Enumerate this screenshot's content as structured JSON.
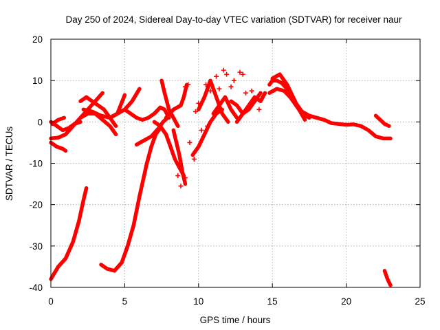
{
  "chart_data": {
    "type": "scatter",
    "title": "Day 250 of 2024, Sidereal Day-to-day VTEC variation (SDTVAR) for receiver naur",
    "xlabel": "GPS time / hours",
    "ylabel": "SDTVAR / TECUs",
    "xlim": [
      0,
      25
    ],
    "ylim": [
      -40,
      20
    ],
    "xticks": [
      0,
      5,
      10,
      15,
      20,
      25
    ],
    "yticks": [
      -40,
      -30,
      -20,
      -10,
      0,
      10,
      20
    ],
    "grid": true,
    "marker": "+",
    "color": "#ff0000",
    "series": [
      {
        "name": "trace-1",
        "x": [
          0,
          0.5,
          1.0,
          1.5,
          1.9,
          2.2,
          2.4
        ],
        "y": [
          -38,
          -35,
          -33,
          -29,
          -24,
          -19,
          -16
        ]
      },
      {
        "name": "trace-2",
        "x": [
          3.4,
          3.8,
          4.3,
          4.8,
          5.2,
          5.6,
          6.0,
          6.5,
          6.8,
          7.1,
          7.4
        ],
        "y": [
          -34.5,
          -35.5,
          -36,
          -34,
          -30,
          -25,
          -18,
          -10,
          -6,
          -3,
          -1.5
        ]
      },
      {
        "name": "trace-3",
        "x": [
          0,
          0.4,
          0.8,
          1.0
        ],
        "y": [
          -5,
          -6,
          -6.5,
          -7
        ]
      },
      {
        "name": "trace-4",
        "x": [
          0,
          0.5,
          1.0,
          1.5,
          2.0,
          2.5,
          3.0,
          3.5
        ],
        "y": [
          -4,
          -3.8,
          -3,
          -1,
          1,
          3,
          5,
          7
        ]
      },
      {
        "name": "trace-5",
        "x": [
          0,
          0.4,
          0.8,
          1.2,
          1.6,
          2.0
        ],
        "y": [
          0,
          -1,
          -2,
          -1.5,
          -0.5,
          0
        ]
      },
      {
        "name": "trace-6",
        "x": [
          0.1,
          0.5,
          0.9
        ],
        "y": [
          -0.5,
          0.5,
          1.0
        ]
      },
      {
        "name": "trace-7",
        "x": [
          2.0,
          2.4,
          2.8,
          3.2,
          3.6,
          4.0,
          4.4
        ],
        "y": [
          5,
          6,
          5,
          4,
          3,
          1,
          -1
        ]
      },
      {
        "name": "trace-8",
        "x": [
          2.0,
          2.5,
          3.0,
          3.5,
          4.0,
          4.4
        ],
        "y": [
          1,
          2,
          2,
          0.5,
          -1,
          -3
        ]
      },
      {
        "name": "trace-9",
        "x": [
          2.2,
          2.8,
          3.4,
          4.0,
          4.5,
          5.0
        ],
        "y": [
          3,
          2.5,
          1.5,
          1.0,
          2.0,
          6.5
        ]
      },
      {
        "name": "trace-10",
        "x": [
          4.0,
          4.5,
          5.0,
          5.5,
          6.0
        ],
        "y": [
          1,
          2,
          3,
          5,
          8
        ]
      },
      {
        "name": "trace-11",
        "x": [
          5.0,
          5.4,
          5.8,
          6.2,
          6.6,
          7.0,
          7.4,
          7.7,
          8.0
        ],
        "y": [
          3,
          2,
          1,
          0.5,
          1,
          2,
          3.5,
          3,
          1
        ]
      },
      {
        "name": "trace-12",
        "x": [
          5.8,
          6.3,
          6.8,
          7.3,
          7.6,
          7.9
        ],
        "y": [
          -5.5,
          -4.5,
          -3.5,
          -1.5,
          0,
          1
        ]
      },
      {
        "name": "trace-13",
        "x": [
          7.5,
          7.7,
          8.0,
          8.3,
          8.6
        ],
        "y": [
          10,
          7,
          3,
          1,
          -1
        ]
      },
      {
        "name": "trace-14",
        "x": [
          7.0,
          7.4,
          7.8,
          8.1,
          8.4,
          8.7,
          9.0
        ],
        "y": [
          0,
          -1,
          -3,
          -6,
          -9,
          -11,
          -13
        ]
      },
      {
        "name": "trace-15",
        "x": [
          7.8,
          8.3,
          8.8,
          9.0,
          9.2
        ],
        "y": [
          1,
          3,
          4,
          6,
          9
        ]
      },
      {
        "name": "trace-16",
        "x": [
          8.3,
          8.5,
          8.7,
          8.9,
          9.1
        ],
        "y": [
          -2,
          -5,
          -8,
          -12,
          -15
        ]
      },
      {
        "name": "trace-17",
        "x": [
          9.6,
          10.0,
          10.4,
          10.8,
          11.2,
          11.6
        ],
        "y": [
          -8,
          -6,
          -3,
          0,
          2,
          3
        ]
      },
      {
        "name": "trace-18",
        "x": [
          10.0,
          10.4,
          10.8,
          11.2,
          11.6,
          12.0
        ],
        "y": [
          3,
          6,
          10,
          6,
          2,
          0
        ]
      },
      {
        "name": "trace-19",
        "x": [
          11.0,
          11.4,
          11.8,
          12.2,
          12.6
        ],
        "y": [
          2,
          4,
          6,
          3,
          1
        ]
      },
      {
        "name": "trace-20",
        "x": [
          12.2,
          12.6,
          13.0,
          13.4,
          13.8,
          14.2
        ],
        "y": [
          5,
          4,
          2,
          3,
          5,
          7
        ]
      },
      {
        "name": "trace-21",
        "x": [
          12.6,
          13.0,
          13.4,
          13.8,
          14.2,
          14.5
        ],
        "y": [
          0,
          2,
          4,
          6,
          5,
          7
        ]
      },
      {
        "name": "trace-22",
        "x": [
          14.8,
          15.0,
          15.3,
          15.6,
          16.0,
          16.5,
          17.0,
          17.5,
          18.0,
          18.5,
          19.0,
          19.5,
          20.0,
          20.5,
          21.0,
          21.5,
          22.0,
          22.5,
          23.0
        ],
        "y": [
          9,
          10,
          10,
          9.5,
          8,
          5,
          2.5,
          1.5,
          1,
          0.5,
          -0.3,
          -0.5,
          -0.7,
          -0.6,
          -1,
          -2,
          -3.5,
          -4,
          -4
        ]
      },
      {
        "name": "trace-23",
        "x": [
          14.8,
          15.3,
          15.8,
          16.2,
          16.6,
          17.0,
          17.5
        ],
        "y": [
          7,
          8,
          7.5,
          6,
          4,
          2,
          1
        ]
      },
      {
        "name": "trace-24",
        "x": [
          15.0,
          15.5,
          16.0,
          16.4,
          16.8,
          17.2
        ],
        "y": [
          10.5,
          11.5,
          9,
          6,
          3,
          0.5
        ]
      },
      {
        "name": "trace-25",
        "x": [
          22.0,
          22.3,
          22.6,
          22.9
        ],
        "y": [
          1.5,
          0.5,
          -0.5,
          -1
        ]
      },
      {
        "name": "trace-26",
        "x": [
          22.6,
          22.8,
          23.0
        ],
        "y": [
          -36,
          -38,
          -39.5
        ]
      }
    ],
    "scatter_points": [
      {
        "x": 11.7,
        "y": 12.5
      },
      {
        "x": 11.9,
        "y": 11.5
      },
      {
        "x": 11.2,
        "y": 11.0
      },
      {
        "x": 12.8,
        "y": 12.0
      },
      {
        "x": 13.0,
        "y": 11.5
      },
      {
        "x": 10.5,
        "y": 9.0
      },
      {
        "x": 10.8,
        "y": 7.5
      },
      {
        "x": 13.2,
        "y": 7.0
      },
      {
        "x": 11.4,
        "y": 8.0
      },
      {
        "x": 12.2,
        "y": 8.5
      },
      {
        "x": 9.1,
        "y": 8.5
      },
      {
        "x": 9.3,
        "y": 9.0
      },
      {
        "x": 10.0,
        "y": 4.5
      },
      {
        "x": 9.8,
        "y": 2.5
      },
      {
        "x": 8.6,
        "y": -13.0
      },
      {
        "x": 9.1,
        "y": -13.5
      },
      {
        "x": 8.8,
        "y": -15.5
      },
      {
        "x": 9.4,
        "y": -5.0
      },
      {
        "x": 9.7,
        "y": -9.0
      },
      {
        "x": 10.2,
        "y": -2.0
      },
      {
        "x": 10.6,
        "y": -1.0
      },
      {
        "x": 13.6,
        "y": 7.5
      },
      {
        "x": 14.1,
        "y": 3.0
      },
      {
        "x": 12.4,
        "y": 10.0
      }
    ]
  }
}
